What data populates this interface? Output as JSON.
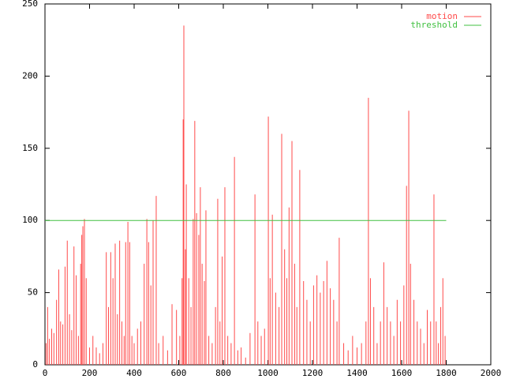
{
  "chart_data": {
    "type": "impulse",
    "legend": "top-right",
    "xlim": [
      0,
      2000
    ],
    "xticks": [
      0,
      200,
      400,
      600,
      800,
      1000,
      1200,
      1400,
      1600,
      1800,
      2000
    ],
    "ylim": [
      0,
      250
    ],
    "yticks": [
      0,
      50,
      100,
      150,
      200,
      250
    ],
    "series": [
      {
        "name": "motion",
        "color": "#ff4a4a",
        "style": "impulses",
        "x": [
          5,
          12,
          20,
          30,
          40,
          52,
          62,
          70,
          80,
          90,
          100,
          110,
          120,
          130,
          140,
          150,
          160,
          165,
          170,
          177,
          185,
          200,
          215,
          230,
          245,
          260,
          275,
          285,
          295,
          305,
          315,
          325,
          335,
          345,
          355,
          362,
          372,
          380,
          390,
          400,
          415,
          430,
          445,
          457,
          465,
          475,
          485,
          499,
          510,
          530,
          550,
          570,
          590,
          605,
          615,
          620,
          623,
          630,
          634,
          645,
          655,
          665,
          672,
          680,
          690,
          697,
          705,
          715,
          722,
          735,
          750,
          765,
          775,
          785,
          795,
          807,
          820,
          835,
          850,
          865,
          880,
          900,
          920,
          942,
          955,
          970,
          985,
          1002,
          1010,
          1020,
          1035,
          1050,
          1062,
          1075,
          1085,
          1095,
          1108,
          1120,
          1130,
          1143,
          1160,
          1175,
          1190,
          1205,
          1220,
          1235,
          1250,
          1265,
          1280,
          1295,
          1310,
          1320,
          1340,
          1360,
          1380,
          1400,
          1420,
          1440,
          1451,
          1460,
          1475,
          1490,
          1505,
          1520,
          1535,
          1550,
          1565,
          1580,
          1595,
          1610,
          1622,
          1632,
          1640,
          1655,
          1670,
          1685,
          1700,
          1715,
          1730,
          1745,
          1755,
          1765,
          1775,
          1785,
          1795
        ],
        "values": [
          15,
          40,
          18,
          25,
          22,
          45,
          66,
          30,
          28,
          68,
          86,
          35,
          24,
          82,
          62,
          20,
          70,
          90,
          96,
          101,
          60,
          12,
          20,
          12,
          8,
          15,
          78,
          40,
          78,
          60,
          84,
          35,
          86,
          30,
          20,
          85,
          99,
          85,
          20,
          15,
          25,
          30,
          70,
          101,
          85,
          55,
          100,
          117,
          15,
          20,
          10,
          42,
          38,
          20,
          60,
          170,
          235,
          80,
          125,
          60,
          40,
          101,
          169,
          105,
          90,
          123,
          70,
          58,
          107,
          20,
          15,
          40,
          115,
          30,
          75,
          123,
          20,
          15,
          144,
          10,
          12,
          5,
          22,
          118,
          30,
          20,
          25,
          172,
          60,
          104,
          50,
          40,
          160,
          80,
          60,
          109,
          155,
          70,
          40,
          135,
          58,
          45,
          30,
          55,
          62,
          50,
          58,
          72,
          53,
          45,
          30,
          88,
          15,
          10,
          20,
          12,
          15,
          30,
          185,
          60,
          40,
          15,
          30,
          71,
          40,
          30,
          20,
          45,
          30,
          55,
          124,
          176,
          70,
          45,
          30,
          25,
          15,
          38,
          30,
          118,
          30,
          15,
          40,
          60,
          20
        ]
      },
      {
        "name": "threshold",
        "color": "#40c040",
        "style": "lines",
        "x": [
          0,
          1800
        ],
        "values": [
          100,
          100
        ]
      }
    ]
  }
}
